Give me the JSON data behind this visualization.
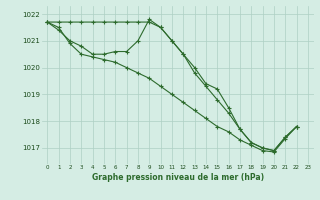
{
  "line1": [
    1021.7,
    1021.7,
    1021.7,
    1021.7,
    1021.7,
    1021.7,
    1021.7,
    1021.7,
    1021.7,
    1021.7,
    1021.5,
    1021.0,
    1020.5,
    1019.8,
    1019.3,
    1018.8,
    1018.3,
    1017.7,
    1017.2,
    1017.0,
    1016.9,
    1017.4,
    1017.8
  ],
  "line2": [
    1021.7,
    1021.4,
    1021.0,
    1020.8,
    1020.5,
    1020.5,
    1020.6,
    1020.6,
    1021.0,
    1021.8,
    1021.5,
    1021.0,
    1020.5,
    1020.0,
    1019.4,
    1019.2,
    1018.5,
    1017.7,
    1017.2,
    1017.0,
    1016.9,
    1017.4,
    1017.8
  ],
  "line3": [
    1021.7,
    1021.5,
    1020.9,
    1020.5,
    1020.4,
    1020.3,
    1020.2,
    1020.0,
    1019.8,
    1019.6,
    1019.3,
    1019.0,
    1018.7,
    1018.4,
    1018.1,
    1017.8,
    1017.6,
    1017.3,
    1017.1,
    1016.9,
    1016.85,
    1017.35,
    1017.8
  ],
  "x": [
    0,
    1,
    2,
    3,
    4,
    5,
    6,
    7,
    8,
    9,
    10,
    11,
    12,
    13,
    14,
    15,
    16,
    17,
    18,
    19,
    20,
    21,
    22
  ],
  "ylim": [
    1016.4,
    1022.3
  ],
  "yticks": [
    1017,
    1018,
    1019,
    1020,
    1021,
    1022
  ],
  "xticks": [
    0,
    1,
    2,
    3,
    4,
    5,
    6,
    7,
    8,
    9,
    10,
    11,
    12,
    13,
    14,
    15,
    16,
    17,
    18,
    19,
    20,
    21,
    22,
    23
  ],
  "xlabel": "Graphe pression niveau de la mer (hPa)",
  "line_color": "#2d6b2d",
  "bg_color": "#d5ede4",
  "grid_color": "#aed0c4",
  "marker": "+",
  "markersize": 3.5,
  "linewidth": 0.8
}
